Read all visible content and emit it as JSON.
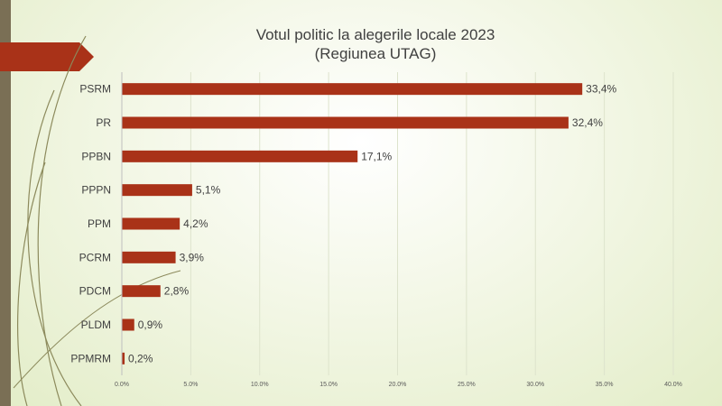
{
  "chart_data": {
    "type": "bar",
    "orientation": "horizontal",
    "title": "Votul politic la alegerile locale 2023",
    "subtitle": "(Regiunea UTAG)",
    "categories": [
      "PSRM",
      "PR",
      "PPBN",
      "PPPN",
      "PPM",
      "PCRM",
      "PDCM",
      "PLDM",
      "PPMRM"
    ],
    "values": [
      33.4,
      32.4,
      17.1,
      5.1,
      4.2,
      3.9,
      2.8,
      0.9,
      0.2
    ],
    "value_labels": [
      "33,4%",
      "32,4%",
      "17,1%",
      "5,1%",
      "4,2%",
      "3,9%",
      "2,8%",
      "0,9%",
      "0,2%"
    ],
    "xlim": [
      0,
      40
    ],
    "x_ticks": [
      0,
      5,
      10,
      15,
      20,
      25,
      30,
      35,
      40
    ],
    "x_tick_labels": [
      "0.0%",
      "5.0%",
      "10.0%",
      "15.0%",
      "20.0%",
      "25.0%",
      "30.0%",
      "35.0%",
      "40.0%"
    ],
    "grid": true,
    "legend": "none",
    "bar_color": "#a93218"
  },
  "theme": {
    "arrow_color": "#a93218",
    "band_color": "#7a6f55",
    "curve_color": "#8c8a5c"
  }
}
